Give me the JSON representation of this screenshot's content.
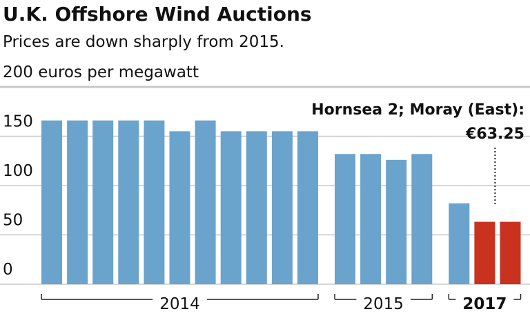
{
  "chart_data": {
    "type": "bar",
    "title": "U.K. Offshore Wind Auctions",
    "subtitle": "Prices are down sharply from 2015.",
    "groups": [
      {
        "name": "2014",
        "values": [
          166,
          166,
          166,
          166,
          166,
          155,
          166,
          155,
          155,
          155,
          155
        ],
        "colors": [
          "#6aa3cc",
          "#6aa3cc",
          "#6aa3cc",
          "#6aa3cc",
          "#6aa3cc",
          "#6aa3cc",
          "#6aa3cc",
          "#6aa3cc",
          "#6aa3cc",
          "#6aa3cc",
          "#6aa3cc"
        ]
      },
      {
        "name": "2015",
        "values": [
          132,
          132,
          126,
          132
        ],
        "colors": [
          "#6aa3cc",
          "#6aa3cc",
          "#6aa3cc",
          "#6aa3cc"
        ]
      },
      {
        "name": "2017",
        "values": [
          82,
          63.25,
          63.25
        ],
        "bold": true,
        "colors": [
          "#6aa3cc",
          "#c8321f",
          "#c8321f"
        ]
      }
    ],
    "annotation": {
      "text": "Hornsea 2; Moray (East):",
      "value_label": "€63.25",
      "group": 2,
      "bar": 1
    },
    "ylim": [
      0,
      200
    ],
    "yticks": [
      0,
      50,
      100,
      150,
      {
        "value": 200,
        "label": "200 euros per megawatt"
      }
    ],
    "grid": true
  }
}
